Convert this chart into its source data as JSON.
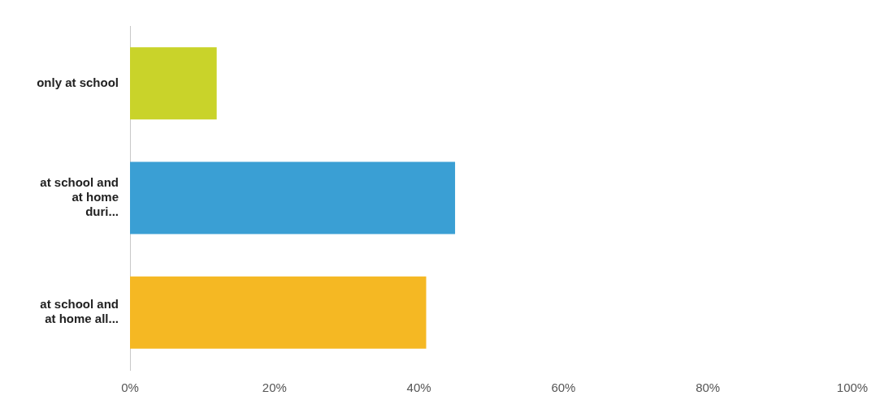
{
  "chart_data": {
    "type": "bar",
    "orientation": "horizontal",
    "categories": [
      "only at school",
      "at school and at home duri...",
      "at school and at home all..."
    ],
    "values": [
      12,
      45,
      41
    ],
    "colors": [
      "#c9d32a",
      "#3a9fd4",
      "#f5b823"
    ],
    "xlim": [
      0,
      100
    ],
    "xticks": [
      {
        "value": 0,
        "label": "0%"
      },
      {
        "value": 20,
        "label": "20%"
      },
      {
        "value": 40,
        "label": "40%"
      },
      {
        "value": 60,
        "label": "60%"
      },
      {
        "value": 80,
        "label": "80%"
      },
      {
        "value": 100,
        "label": "100%"
      }
    ],
    "grid": false,
    "legend": false
  }
}
